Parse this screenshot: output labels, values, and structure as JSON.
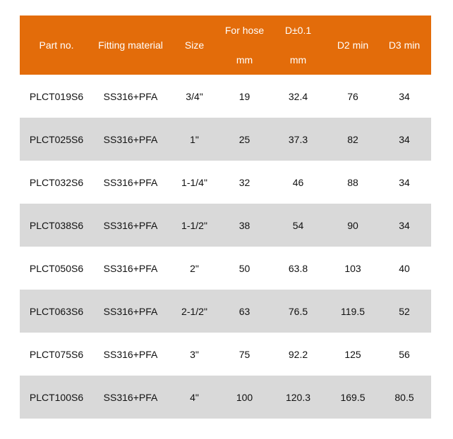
{
  "colors": {
    "header_bg": "#E36C0A",
    "header_text": "#FFFFFF",
    "alt_row_bg": "#D9D9D9"
  },
  "headers": [
    {
      "label": "Part no.",
      "unit": ""
    },
    {
      "label": "Fitting material",
      "unit": ""
    },
    {
      "label": "Size",
      "unit": ""
    },
    {
      "label": "For hose",
      "unit": "mm"
    },
    {
      "label": "D±0.1",
      "unit": "mm"
    },
    {
      "label": "D2 min",
      "unit": ""
    },
    {
      "label": "D3 min",
      "unit": ""
    }
  ],
  "rows": [
    [
      "PLCT019S6",
      "SS316+PFA",
      "3/4\"",
      "19",
      "32.4",
      "76",
      "34"
    ],
    [
      "PLCT025S6",
      "SS316+PFA",
      "1\"",
      "25",
      "37.3",
      "82",
      "34"
    ],
    [
      "PLCT032S6",
      "SS316+PFA",
      "1-1/4\"",
      "32",
      "46",
      "88",
      "34"
    ],
    [
      "PLCT038S6",
      "SS316+PFA",
      "1-1/2\"",
      "38",
      "54",
      "90",
      "34"
    ],
    [
      "PLCT050S6",
      "SS316+PFA",
      "2\"",
      "50",
      "63.8",
      "103",
      "40"
    ],
    [
      "PLCT063S6",
      "SS316+PFA",
      "2-1/2\"",
      "63",
      "76.5",
      "119.5",
      "52"
    ],
    [
      "PLCT075S6",
      "SS316+PFA",
      "3\"",
      "75",
      "92.2",
      "125",
      "56"
    ],
    [
      "PLCT100S6",
      "SS316+PFA",
      "4\"",
      "100",
      "120.3",
      "169.5",
      "80.5"
    ]
  ]
}
